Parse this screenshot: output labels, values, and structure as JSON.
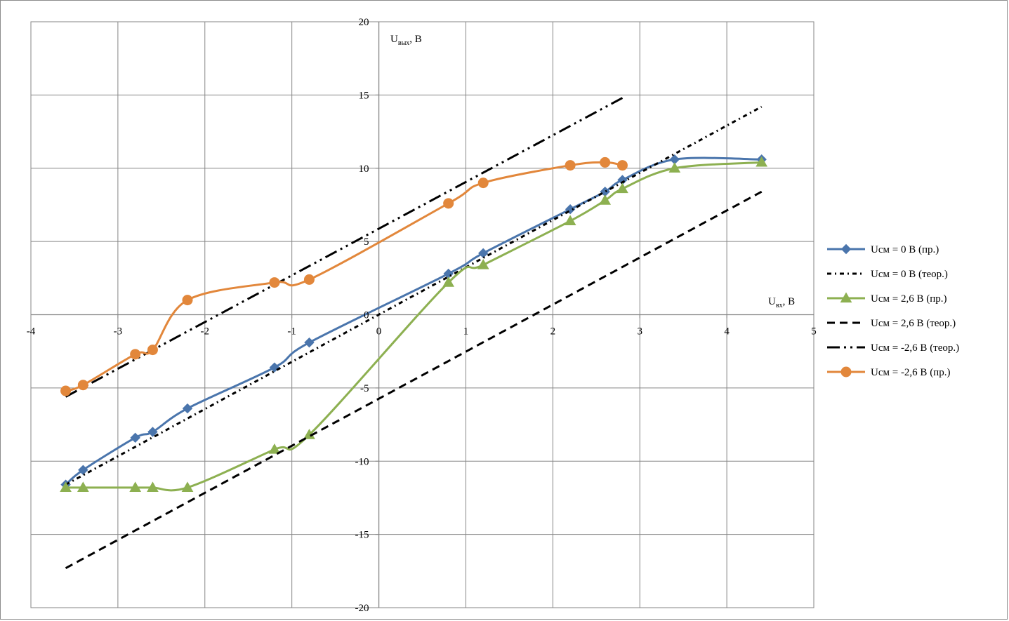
{
  "chart_data": {
    "type": "line",
    "xlim": [
      -4,
      5
    ],
    "ylim": [
      -20,
      20
    ],
    "x_ticks": [
      -4,
      -3,
      -2,
      -1,
      0,
      1,
      2,
      3,
      4,
      5
    ],
    "y_ticks": [
      -20,
      -15,
      -10,
      -5,
      0,
      5,
      10,
      15,
      20
    ],
    "x_tick_labels": [
      "-4",
      "-3",
      "-2",
      "-1",
      "0",
      "1",
      "2",
      "3",
      "4",
      "5"
    ],
    "y_tick_labels": [
      "-20",
      "-15",
      "-10",
      "-5",
      "0",
      "5",
      "10",
      "15",
      "20"
    ],
    "xlabel": {
      "main": "U",
      "sub": "вх",
      "rest": ", В"
    },
    "ylabel": {
      "main": "U",
      "sub": "вых",
      "rest": ", В"
    },
    "grid": true,
    "legend_position": "right",
    "series": [
      {
        "name": "Uсм = 0 В (пр.)",
        "color": "#4a75ac",
        "style": "solid",
        "marker": "diamond",
        "x": [
          -3.6,
          -3.4,
          -2.8,
          -2.6,
          -2.2,
          -1.2,
          -0.8,
          0.8,
          1.2,
          2.2,
          2.6,
          2.8,
          3.4,
          4.4
        ],
        "y": [
          -11.6,
          -10.6,
          -8.4,
          -8.0,
          -6.4,
          -3.6,
          -1.9,
          2.8,
          4.2,
          7.2,
          8.4,
          9.2,
          10.6,
          10.6
        ]
      },
      {
        "name": "Uсм = 0 В (теор.)",
        "color": "#000000",
        "style": "dash-dot",
        "marker": "none",
        "x": [
          -3.6,
          4.4
        ],
        "y": [
          -11.6,
          14.2
        ]
      },
      {
        "name": "Uсм = 2,6 В (пр.)",
        "color": "#8db051",
        "style": "solid",
        "marker": "triangle",
        "x": [
          -3.6,
          -3.4,
          -2.8,
          -2.6,
          -2.2,
          -1.2,
          -0.8,
          0.8,
          1.2,
          2.2,
          2.6,
          2.8,
          3.4,
          4.4
        ],
        "y": [
          -11.8,
          -11.8,
          -11.8,
          -11.8,
          -11.8,
          -9.2,
          -8.2,
          2.2,
          3.4,
          6.4,
          7.8,
          8.6,
          10.0,
          10.4
        ]
      },
      {
        "name": "Uсм = 2,6 В (теор.)",
        "color": "#000000",
        "style": "dash",
        "marker": "none",
        "x": [
          -3.6,
          4.4
        ],
        "y": [
          -17.3,
          8.4
        ]
      },
      {
        "name": "Uсм = -2,6 В (теор.)",
        "color": "#000000",
        "style": "long-dash-dot-dot",
        "marker": "none",
        "x": [
          -3.6,
          2.8
        ],
        "y": [
          -5.6,
          14.8
        ]
      },
      {
        "name": "Uсм = -2,6 В (пр.)",
        "color": "#e2873b",
        "style": "solid",
        "marker": "circle",
        "x": [
          -3.6,
          -3.4,
          -2.8,
          -2.6,
          -2.2,
          -1.2,
          -0.8,
          0.8,
          1.2,
          2.2,
          2.6,
          2.8
        ],
        "y": [
          -5.2,
          -4.8,
          -2.7,
          -2.4,
          1.0,
          2.2,
          2.4,
          7.6,
          9.0,
          10.2,
          10.4,
          10.2
        ]
      }
    ]
  }
}
